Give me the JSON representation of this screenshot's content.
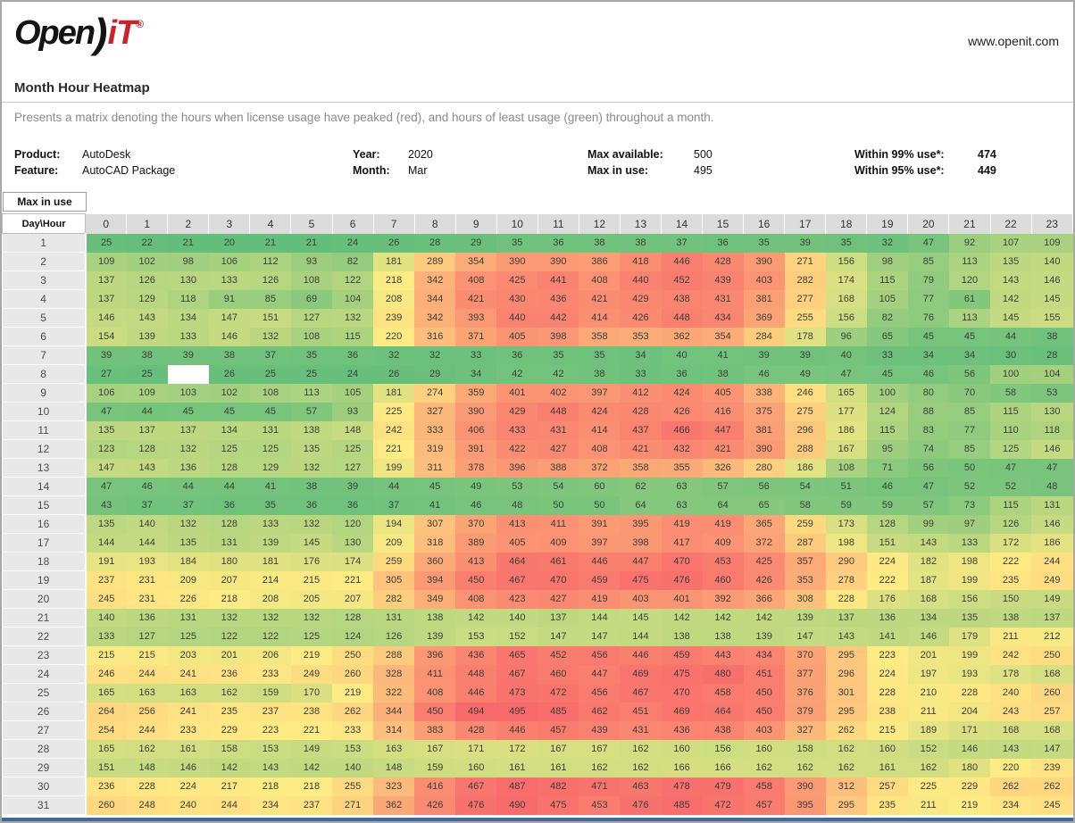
{
  "page": {
    "logo": {
      "part1": "Open",
      "part2": ")",
      "part3": "iT",
      "registered": "®"
    },
    "website": "www.openit.com",
    "title": "Month Hour Heatmap",
    "description": "Presents a matrix denoting the hours when license usage have peaked (red), and hours of least usage (green) throughout a month."
  },
  "info": {
    "product_label": "Product:",
    "product": "AutoDesk",
    "feature_label": "Feature:",
    "feature": "AutoCAD Package",
    "year_label": "Year:",
    "year": "2020",
    "month_label": "Month:",
    "month": "Mar",
    "max_available_label": "Max available:",
    "max_available": "500",
    "max_in_use_label": "Max in use:",
    "max_in_use": "495",
    "within99_label": "Within 99% use*:",
    "within99": "474",
    "within95_label": "Within 95% use*:",
    "within95": "449"
  },
  "table": {
    "metric_label": "Max in use",
    "corner_label": "Day\\Hour"
  },
  "chart_data": {
    "type": "heatmap",
    "title": "Month Hour Heatmap",
    "xlabel": "Hour",
    "ylabel": "Day",
    "legend": "red = peak usage, green = least usage",
    "hours": [
      0,
      1,
      2,
      3,
      4,
      5,
      6,
      7,
      8,
      9,
      10,
      11,
      12,
      13,
      14,
      15,
      16,
      17,
      18,
      19,
      20,
      21,
      22,
      23
    ],
    "days": [
      1,
      2,
      3,
      4,
      5,
      6,
      7,
      8,
      9,
      10,
      11,
      12,
      13,
      14,
      15,
      16,
      17,
      18,
      19,
      20,
      21,
      22,
      23,
      24,
      25,
      26,
      27,
      28,
      29,
      30,
      31
    ],
    "color_scale": {
      "low": "#63BE7B",
      "mid": "#FFEB84",
      "high": "#F8696B",
      "min_value": 20,
      "mid_value": 220,
      "max_value": 495
    },
    "missing_cells": [
      {
        "day": 8,
        "hour": 2
      }
    ],
    "values": [
      [
        25,
        22,
        21,
        20,
        21,
        21,
        24,
        26,
        28,
        29,
        35,
        36,
        38,
        38,
        37,
        36,
        35,
        39,
        35,
        32,
        47,
        92,
        107,
        109
      ],
      [
        109,
        102,
        98,
        106,
        112,
        93,
        82,
        181,
        289,
        354,
        390,
        390,
        386,
        418,
        446,
        428,
        390,
        271,
        156,
        98,
        85,
        113,
        135,
        140
      ],
      [
        137,
        126,
        130,
        133,
        126,
        108,
        122,
        218,
        342,
        408,
        425,
        441,
        408,
        440,
        452,
        439,
        403,
        282,
        174,
        115,
        79,
        120,
        143,
        146
      ],
      [
        137,
        129,
        118,
        91,
        85,
        69,
        104,
        208,
        344,
        421,
        430,
        436,
        421,
        429,
        438,
        431,
        381,
        277,
        168,
        105,
        77,
        61,
        142,
        145
      ],
      [
        146,
        143,
        134,
        147,
        151,
        127,
        132,
        239,
        342,
        393,
        440,
        442,
        414,
        426,
        448,
        434,
        369,
        255,
        156,
        82,
        76,
        113,
        145,
        155
      ],
      [
        154,
        139,
        133,
        146,
        132,
        108,
        115,
        220,
        316,
        371,
        405,
        398,
        358,
        353,
        362,
        354,
        284,
        178,
        96,
        65,
        45,
        45,
        44,
        38
      ],
      [
        39,
        38,
        39,
        38,
        37,
        35,
        36,
        32,
        32,
        33,
        36,
        35,
        35,
        34,
        40,
        41,
        39,
        39,
        40,
        33,
        34,
        34,
        30,
        28
      ],
      [
        27,
        25,
        null,
        26,
        25,
        25,
        24,
        26,
        29,
        34,
        42,
        42,
        38,
        33,
        36,
        38,
        46,
        49,
        47,
        45,
        46,
        56,
        100,
        104
      ],
      [
        106,
        109,
        103,
        102,
        108,
        113,
        105,
        181,
        274,
        359,
        401,
        402,
        397,
        412,
        424,
        405,
        338,
        246,
        165,
        100,
        80,
        70,
        58,
        53
      ],
      [
        47,
        44,
        45,
        45,
        45,
        57,
        93,
        225,
        327,
        390,
        429,
        448,
        424,
        428,
        426,
        416,
        375,
        275,
        177,
        124,
        88,
        85,
        115,
        130
      ],
      [
        135,
        137,
        137,
        134,
        131,
        138,
        148,
        242,
        333,
        406,
        433,
        431,
        414,
        437,
        466,
        447,
        381,
        296,
        186,
        115,
        83,
        77,
        110,
        118
      ],
      [
        123,
        128,
        132,
        125,
        125,
        135,
        125,
        221,
        319,
        391,
        422,
        427,
        408,
        421,
        432,
        421,
        390,
        288,
        167,
        95,
        74,
        85,
        125,
        146
      ],
      [
        147,
        143,
        136,
        128,
        129,
        132,
        127,
        199,
        311,
        378,
        396,
        388,
        372,
        358,
        355,
        326,
        280,
        186,
        108,
        71,
        56,
        50,
        47,
        47
      ],
      [
        47,
        46,
        44,
        44,
        41,
        38,
        39,
        44,
        45,
        49,
        53,
        54,
        60,
        62,
        63,
        57,
        56,
        54,
        51,
        46,
        47,
        52,
        52,
        48
      ],
      [
        43,
        37,
        37,
        36,
        35,
        36,
        36,
        37,
        41,
        46,
        48,
        50,
        50,
        64,
        63,
        64,
        65,
        58,
        59,
        59,
        57,
        73,
        115,
        131
      ],
      [
        135,
        140,
        132,
        128,
        133,
        132,
        120,
        194,
        307,
        370,
        413,
        411,
        391,
        395,
        419,
        419,
        365,
        259,
        173,
        128,
        99,
        97,
        126,
        146
      ],
      [
        144,
        144,
        135,
        131,
        139,
        145,
        130,
        209,
        318,
        389,
        405,
        409,
        397,
        398,
        417,
        409,
        372,
        287,
        198,
        151,
        143,
        133,
        172,
        186
      ],
      [
        191,
        193,
        184,
        180,
        181,
        176,
        174,
        259,
        360,
        413,
        464,
        461,
        446,
        447,
        470,
        453,
        425,
        357,
        290,
        224,
        182,
        198,
        222,
        244
      ],
      [
        237,
        231,
        209,
        207,
        214,
        215,
        221,
        305,
        394,
        450,
        467,
        470,
        459,
        475,
        476,
        460,
        426,
        353,
        278,
        222,
        187,
        199,
        235,
        249
      ],
      [
        245,
        231,
        226,
        218,
        208,
        205,
        207,
        282,
        349,
        408,
        423,
        427,
        419,
        403,
        401,
        392,
        366,
        308,
        228,
        176,
        168,
        156,
        150,
        149
      ],
      [
        140,
        136,
        131,
        132,
        132,
        132,
        128,
        131,
        138,
        142,
        140,
        137,
        144,
        145,
        142,
        142,
        142,
        139,
        137,
        136,
        134,
        135,
        138,
        137
      ],
      [
        133,
        127,
        125,
        122,
        122,
        125,
        124,
        126,
        139,
        153,
        152,
        147,
        147,
        144,
        138,
        138,
        139,
        147,
        143,
        141,
        146,
        179,
        211,
        212
      ],
      [
        215,
        215,
        203,
        201,
        206,
        219,
        250,
        288,
        396,
        436,
        465,
        452,
        456,
        446,
        459,
        443,
        434,
        370,
        295,
        223,
        201,
        199,
        242,
        250
      ],
      [
        246,
        244,
        241,
        236,
        233,
        249,
        260,
        328,
        411,
        448,
        467,
        460,
        447,
        469,
        475,
        480,
        451,
        377,
        296,
        224,
        197,
        193,
        178,
        168
      ],
      [
        165,
        163,
        163,
        162,
        159,
        170,
        219,
        322,
        408,
        446,
        473,
        472,
        456,
        467,
        470,
        458,
        450,
        376,
        301,
        228,
        210,
        228,
        240,
        260
      ],
      [
        264,
        256,
        241,
        235,
        237,
        238,
        262,
        344,
        450,
        494,
        495,
        485,
        462,
        451,
        469,
        464,
        450,
        379,
        295,
        238,
        211,
        204,
        243,
        257
      ],
      [
        254,
        244,
        233,
        229,
        223,
        221,
        233,
        314,
        383,
        428,
        446,
        457,
        439,
        431,
        436,
        438,
        403,
        327,
        262,
        215,
        189,
        171,
        168,
        168
      ],
      [
        165,
        162,
        161,
        158,
        153,
        149,
        153,
        163,
        167,
        171,
        172,
        167,
        167,
        162,
        160,
        156,
        160,
        158,
        162,
        160,
        152,
        146,
        143,
        147
      ],
      [
        151,
        148,
        146,
        142,
        143,
        142,
        140,
        148,
        159,
        160,
        161,
        161,
        162,
        162,
        166,
        166,
        162,
        162,
        162,
        161,
        162,
        180,
        220,
        239
      ],
      [
        236,
        228,
        224,
        217,
        218,
        218,
        255,
        323,
        416,
        467,
        487,
        482,
        471,
        463,
        478,
        479,
        458,
        390,
        312,
        257,
        225,
        229,
        262,
        262
      ],
      [
        260,
        248,
        240,
        244,
        234,
        237,
        271,
        362,
        426,
        476,
        490,
        475,
        453,
        476,
        485,
        472,
        457,
        395,
        295,
        235,
        211,
        219,
        234,
        245
      ]
    ]
  }
}
